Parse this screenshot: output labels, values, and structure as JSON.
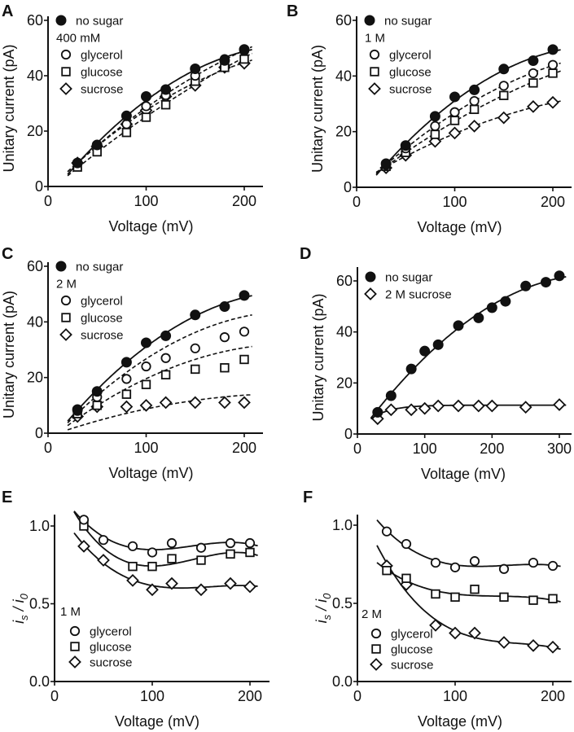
{
  "chart_data": [
    {
      "panel": "A",
      "type": "scatter",
      "xlabel": "Voltage (mV)",
      "ylabel": "Unitary current (pA)",
      "xlim": [
        0,
        220
      ],
      "ylim": [
        0,
        60
      ],
      "xticks": [
        0,
        100,
        200
      ],
      "yticks": [
        0,
        20,
        40,
        60
      ],
      "legend_heading": "400 mM",
      "series": [
        {
          "name": "no sugar",
          "marker": "filled-circle",
          "fit": "solid",
          "x": [
            30,
            50,
            80,
            100,
            120,
            150,
            180,
            200
          ],
          "y": [
            8.5,
            15,
            25.5,
            32.5,
            35,
            42.5,
            45.5,
            49.5
          ]
        },
        {
          "name": "glycerol",
          "marker": "open-circle",
          "fit": "dashed",
          "x": [
            30,
            50,
            80,
            100,
            120,
            150,
            180,
            200
          ],
          "y": [
            8.5,
            15,
            22.5,
            29,
            33,
            40,
            46,
            49
          ]
        },
        {
          "name": "glucose",
          "marker": "open-square",
          "fit": "dashed",
          "x": [
            30,
            50,
            80,
            100,
            120,
            150,
            180,
            200
          ],
          "y": [
            7,
            12.5,
            19.5,
            25,
            29.5,
            38,
            43,
            46
          ]
        },
        {
          "name": "sucrose",
          "marker": "open-diamond",
          "fit": "dashed",
          "x": [
            30,
            50,
            80,
            100,
            120,
            150,
            180,
            200
          ],
          "y": [
            8.5,
            14.5,
            22.5,
            27.5,
            32.5,
            36.5,
            43,
            44.5
          ]
        }
      ]
    },
    {
      "panel": "B",
      "type": "scatter",
      "xlabel": "Voltage (mV)",
      "ylabel": "Unitary current (pA)",
      "xlim": [
        0,
        220
      ],
      "ylim": [
        0,
        60
      ],
      "xticks": [
        0,
        100,
        200
      ],
      "yticks": [
        0,
        20,
        40,
        60
      ],
      "legend_heading": "1 M",
      "series": [
        {
          "name": "no sugar",
          "marker": "filled-circle",
          "fit": "solid",
          "x": [
            30,
            50,
            80,
            100,
            120,
            150,
            180,
            200
          ],
          "y": [
            8.5,
            15,
            25.5,
            32.5,
            35,
            42.5,
            45.5,
            49.5
          ]
        },
        {
          "name": "glycerol",
          "marker": "open-circle",
          "fit": "dashed",
          "x": [
            30,
            50,
            80,
            100,
            120,
            150,
            180,
            200
          ],
          "y": [
            8,
            14,
            22,
            27,
            31,
            36.5,
            41,
            44
          ]
        },
        {
          "name": "glucose",
          "marker": "open-square",
          "fit": "dashed",
          "x": [
            30,
            50,
            80,
            100,
            120,
            150,
            180,
            200
          ],
          "y": [
            7.5,
            12.5,
            19,
            24,
            28,
            33,
            37.5,
            41
          ]
        },
        {
          "name": "sucrose",
          "marker": "open-diamond",
          "fit": "dashed",
          "x": [
            30,
            50,
            80,
            100,
            120,
            150,
            180,
            200
          ],
          "y": [
            7,
            11.5,
            16.5,
            19.5,
            22,
            25,
            29,
            30.5
          ]
        }
      ]
    },
    {
      "panel": "C",
      "type": "scatter",
      "xlabel": "Voltage (mV)",
      "ylabel": "Unitary current (pA)",
      "xlim": [
        0,
        220
      ],
      "ylim": [
        0,
        60
      ],
      "xticks": [
        0,
        100,
        200
      ],
      "yticks": [
        0,
        20,
        40,
        60
      ],
      "legend_heading": "2 M",
      "series": [
        {
          "name": "no sugar",
          "marker": "filled-circle",
          "fit": "solid",
          "x": [
            30,
            50,
            80,
            100,
            120,
            150,
            180,
            200
          ],
          "y": [
            8.5,
            15,
            25.5,
            32.5,
            35,
            42.5,
            45.5,
            49.5
          ]
        },
        {
          "name": "glycerol",
          "marker": "open-circle",
          "fit": "dashed",
          "x": [
            30,
            50,
            80,
            100,
            120,
            150,
            180,
            200
          ],
          "y": [
            8,
            13,
            19.5,
            24,
            27,
            30.5,
            34.5,
            36.5
          ]
        },
        {
          "name": "glucose",
          "marker": "open-square",
          "fit": "dashed",
          "x": [
            30,
            50,
            80,
            100,
            120,
            150,
            180,
            200
          ],
          "y": [
            7,
            10,
            14,
            17.5,
            21,
            23,
            23.5,
            26.5
          ]
        },
        {
          "name": "sucrose",
          "marker": "open-diamond",
          "fit": "dashed",
          "x": [
            30,
            50,
            80,
            100,
            120,
            150,
            180,
            200
          ],
          "y": [
            6,
            9.5,
            9.5,
            10,
            11,
            11,
            11,
            11
          ]
        }
      ]
    },
    {
      "panel": "D",
      "type": "scatter",
      "xlabel": "Voltage (mV)",
      "ylabel": "Unitary current (pA)",
      "xlim": [
        0,
        310
      ],
      "ylim": [
        0,
        65
      ],
      "xticks": [
        0,
        100,
        200,
        300
      ],
      "yticks": [
        0,
        20,
        40,
        60
      ],
      "legend_heading": "",
      "series": [
        {
          "name": "no sugar",
          "marker": "filled-circle",
          "fit": "solid",
          "x": [
            30,
            50,
            80,
            100,
            120,
            150,
            180,
            200,
            220,
            250,
            280,
            300
          ],
          "y": [
            8.5,
            15,
            25.5,
            32.5,
            35,
            42.5,
            45.5,
            49.5,
            52,
            58,
            59.5,
            62
          ]
        },
        {
          "name": "2 M sucrose",
          "marker": "open-diamond",
          "fit": "solid",
          "x": [
            30,
            50,
            80,
            100,
            120,
            150,
            180,
            200,
            250,
            300
          ],
          "y": [
            6,
            9.5,
            9.5,
            10,
            11,
            11,
            11,
            11,
            10.5,
            11.5
          ]
        }
      ]
    },
    {
      "panel": "E",
      "type": "scatter",
      "xlabel": "Voltage (mV)",
      "ylabel": "i_s / i_0",
      "xlim": [
        0,
        220
      ],
      "ylim": [
        0,
        1.07
      ],
      "xticks": [
        0,
        100,
        200
      ],
      "yticks": [
        "0.0",
        "0.5",
        "1.0"
      ],
      "legend_heading": "1 M",
      "series": [
        {
          "name": "glycerol",
          "marker": "open-circle",
          "fit": "solid",
          "x": [
            30,
            50,
            80,
            100,
            120,
            150,
            180,
            200
          ],
          "y": [
            1.04,
            0.91,
            0.87,
            0.83,
            0.89,
            0.86,
            0.89,
            0.89
          ]
        },
        {
          "name": "glucose",
          "marker": "open-square",
          "fit": "solid",
          "x": [
            30,
            80,
            100,
            120,
            150,
            180,
            200
          ],
          "y": [
            1.0,
            0.74,
            0.74,
            0.79,
            0.78,
            0.82,
            0.83
          ]
        },
        {
          "name": "sucrose",
          "marker": "open-diamond",
          "fit": "solid",
          "x": [
            30,
            50,
            80,
            100,
            120,
            150,
            180,
            200
          ],
          "y": [
            0.87,
            0.78,
            0.65,
            0.59,
            0.63,
            0.59,
            0.63,
            0.61
          ]
        }
      ]
    },
    {
      "panel": "F",
      "type": "scatter",
      "xlabel": "Voltage (mV)",
      "ylabel": "i_s / i_0",
      "xlim": [
        0,
        220
      ],
      "ylim": [
        0,
        1.07
      ],
      "xticks": [
        0,
        100,
        200
      ],
      "yticks": [
        "0.0",
        "0.5",
        "1.0"
      ],
      "legend_heading": "2 M",
      "series": [
        {
          "name": "glycerol",
          "marker": "open-circle",
          "fit": "solid",
          "x": [
            30,
            50,
            80,
            100,
            120,
            150,
            180,
            200
          ],
          "y": [
            0.96,
            0.88,
            0.76,
            0.73,
            0.77,
            0.72,
            0.76,
            0.74
          ]
        },
        {
          "name": "glucose",
          "marker": "open-square",
          "fit": "solid",
          "x": [
            30,
            50,
            80,
            100,
            120,
            150,
            180,
            200
          ],
          "y": [
            0.71,
            0.66,
            0.56,
            0.54,
            0.59,
            0.54,
            0.52,
            0.53
          ]
        },
        {
          "name": "sucrose",
          "marker": "open-diamond",
          "fit": "solid",
          "x": [
            30,
            50,
            80,
            100,
            120,
            150,
            180,
            200
          ],
          "y": [
            0.74,
            0.62,
            0.36,
            0.31,
            0.31,
            0.25,
            0.23,
            0.22
          ]
        }
      ]
    }
  ]
}
